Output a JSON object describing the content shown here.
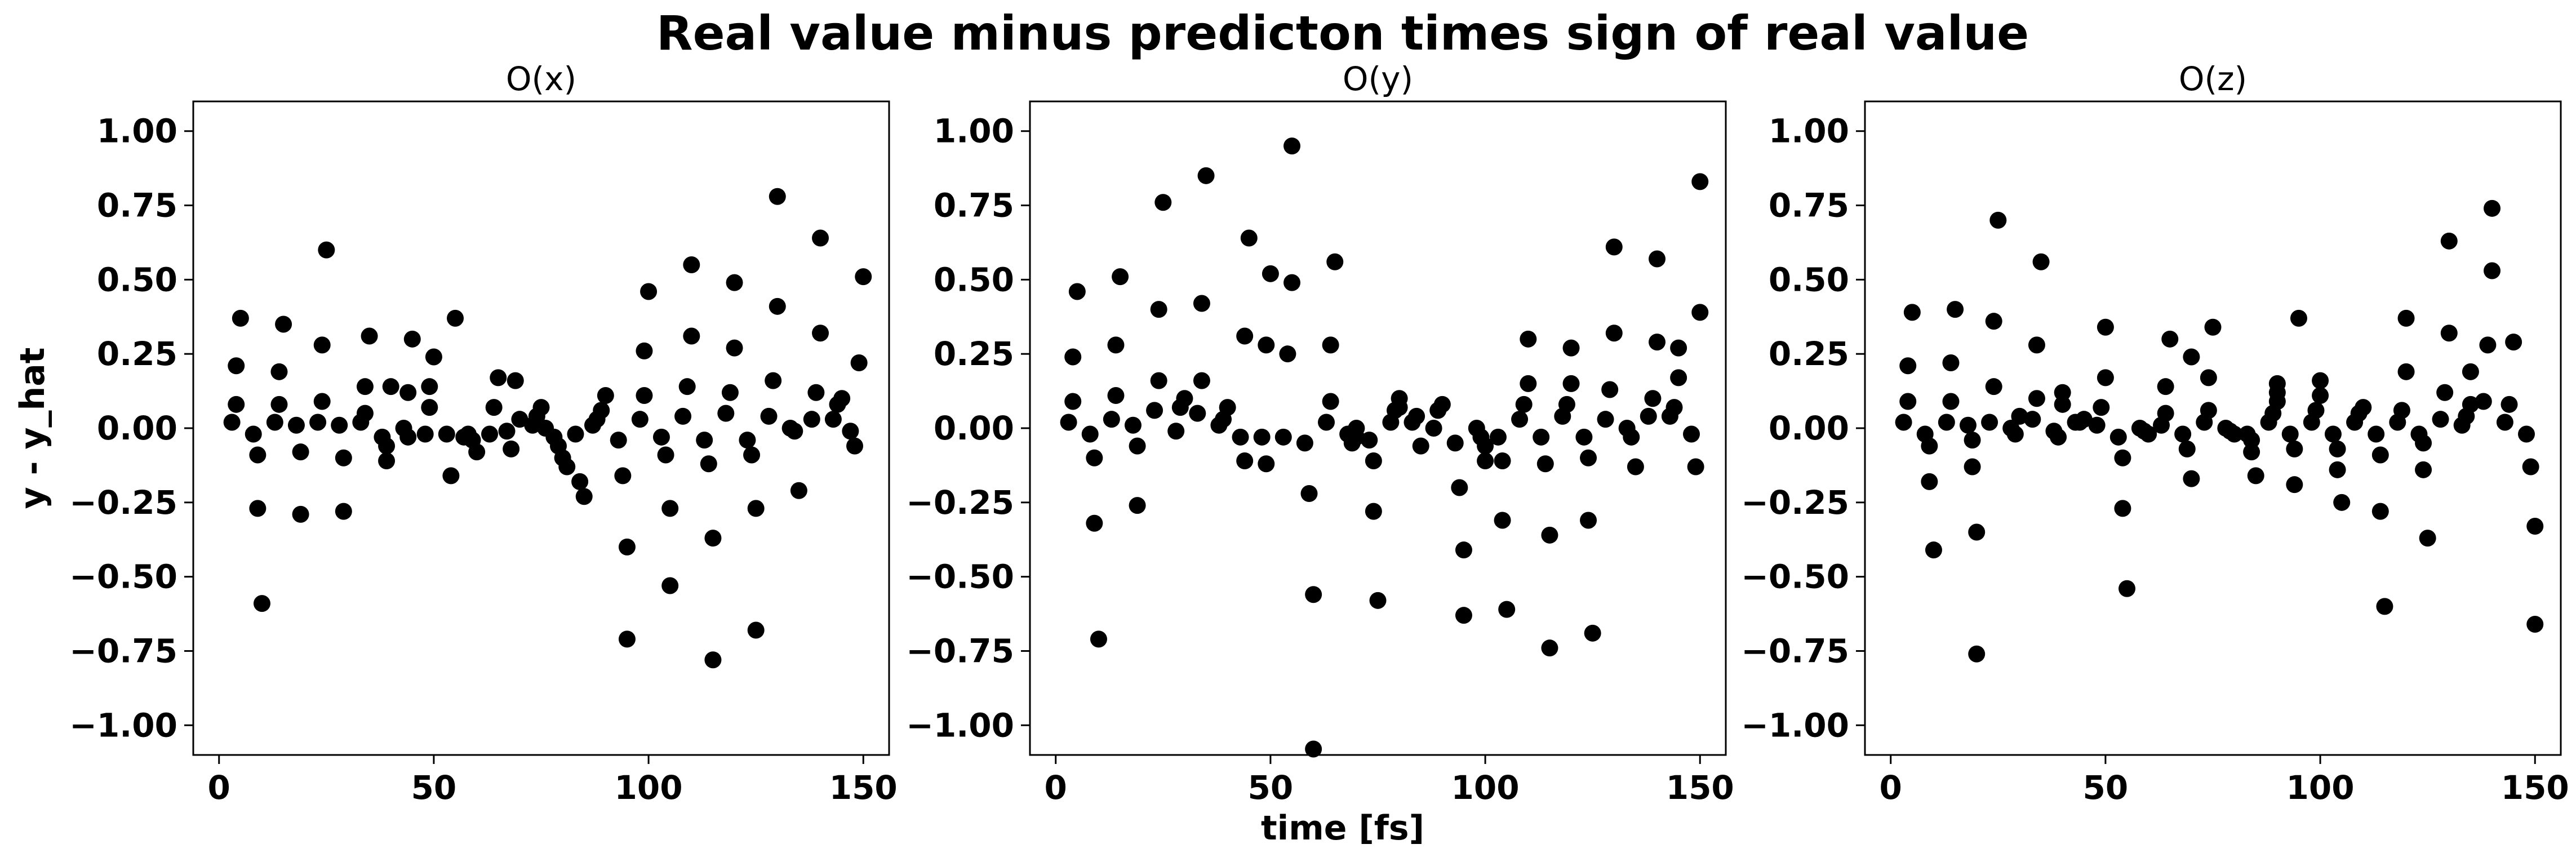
{
  "figure": {
    "title": "Real value minus predicton times sign of real value",
    "xlabel": "time [fs]",
    "ylabel": "y - y_hat"
  },
  "chart_data": [
    {
      "type": "scatter",
      "title": "O(x)",
      "xlim": [
        -6,
        156
      ],
      "ylim": [
        -1.1,
        1.1
      ],
      "xticks": [
        0,
        50,
        100,
        150
      ],
      "xtick_labels": [
        "0",
        "50",
        "100",
        "150"
      ],
      "yticks": [
        1.0,
        0.75,
        0.5,
        0.25,
        0.0,
        -0.25,
        -0.5,
        -0.75,
        -1.0
      ],
      "ytick_labels": [
        "1.00",
        "0.75",
        "0.50",
        "0.25",
        "0.00",
        "−0.25",
        "−0.50",
        "−0.75",
        "−1.00"
      ],
      "marker_color": "#000000",
      "grid": false,
      "points": [
        [
          3,
          0.02
        ],
        [
          4,
          0.08
        ],
        [
          4,
          0.21
        ],
        [
          5,
          0.37
        ],
        [
          8,
          -0.02
        ],
        [
          9,
          -0.09
        ],
        [
          9,
          -0.27
        ],
        [
          10,
          -0.59
        ],
        [
          13,
          0.02
        ],
        [
          14,
          0.08
        ],
        [
          14,
          0.19
        ],
        [
          15,
          0.35
        ],
        [
          18,
          0.01
        ],
        [
          19,
          -0.08
        ],
        [
          19,
          -0.29
        ],
        [
          23,
          0.02
        ],
        [
          24,
          0.09
        ],
        [
          24,
          0.28
        ],
        [
          25,
          0.6
        ],
        [
          28,
          0.01
        ],
        [
          29,
          -0.1
        ],
        [
          29,
          -0.28
        ],
        [
          33,
          0.02
        ],
        [
          34,
          0.05
        ],
        [
          34,
          0.14
        ],
        [
          35,
          0.31
        ],
        [
          38,
          -0.03
        ],
        [
          39,
          -0.06
        ],
        [
          39,
          -0.11
        ],
        [
          40,
          0.14
        ],
        [
          43,
          0.0
        ],
        [
          44,
          -0.03
        ],
        [
          44,
          0.12
        ],
        [
          45,
          0.3
        ],
        [
          48,
          -0.02
        ],
        [
          49,
          0.14
        ],
        [
          49,
          0.07
        ],
        [
          50,
          0.24
        ],
        [
          53,
          -0.02
        ],
        [
          54,
          -0.16
        ],
        [
          55,
          0.37
        ],
        [
          57,
          -0.03
        ],
        [
          58,
          -0.02
        ],
        [
          59,
          -0.04
        ],
        [
          60,
          -0.08
        ],
        [
          63,
          -0.02
        ],
        [
          64,
          0.07
        ],
        [
          65,
          0.17
        ],
        [
          67,
          -0.01
        ],
        [
          68,
          -0.07
        ],
        [
          69,
          0.16
        ],
        [
          70,
          0.03
        ],
        [
          73,
          0.01
        ],
        [
          74,
          0.04
        ],
        [
          75,
          0.07
        ],
        [
          76,
          0.0
        ],
        [
          78,
          -0.03
        ],
        [
          79,
          -0.06
        ],
        [
          80,
          -0.1
        ],
        [
          81,
          -0.13
        ],
        [
          83,
          -0.02
        ],
        [
          84,
          -0.18
        ],
        [
          85,
          -0.23
        ],
        [
          87,
          0.01
        ],
        [
          88,
          0.03
        ],
        [
          89,
          0.06
        ],
        [
          90,
          0.11
        ],
        [
          93,
          -0.04
        ],
        [
          94,
          -0.16
        ],
        [
          95,
          -0.4
        ],
        [
          95,
          -0.71
        ],
        [
          98,
          0.03
        ],
        [
          99,
          0.11
        ],
        [
          99,
          0.26
        ],
        [
          100,
          0.46
        ],
        [
          103,
          -0.03
        ],
        [
          104,
          -0.09
        ],
        [
          105,
          -0.27
        ],
        [
          105,
          -0.53
        ],
        [
          108,
          0.04
        ],
        [
          109,
          0.14
        ],
        [
          110,
          0.31
        ],
        [
          110,
          0.55
        ],
        [
          113,
          -0.04
        ],
        [
          114,
          -0.12
        ],
        [
          115,
          -0.37
        ],
        [
          115,
          -0.78
        ],
        [
          118,
          0.05
        ],
        [
          119,
          0.12
        ],
        [
          120,
          0.27
        ],
        [
          120,
          0.49
        ],
        [
          123,
          -0.04
        ],
        [
          124,
          -0.09
        ],
        [
          125,
          -0.27
        ],
        [
          125,
          -0.68
        ],
        [
          128,
          0.04
        ],
        [
          129,
          0.16
        ],
        [
          130,
          0.41
        ],
        [
          130,
          0.78
        ],
        [
          133,
          0.0
        ],
        [
          134,
          -0.01
        ],
        [
          135,
          -0.21
        ],
        [
          138,
          0.03
        ],
        [
          139,
          0.12
        ],
        [
          140,
          0.32
        ],
        [
          140,
          0.64
        ],
        [
          143,
          0.03
        ],
        [
          144,
          0.08
        ],
        [
          145,
          0.1
        ],
        [
          147,
          -0.01
        ],
        [
          148,
          -0.06
        ],
        [
          149,
          0.22
        ],
        [
          150,
          0.51
        ]
      ]
    },
    {
      "type": "scatter",
      "title": "O(y)",
      "xlim": [
        -6,
        156
      ],
      "ylim": [
        -1.1,
        1.1
      ],
      "xticks": [
        0,
        50,
        100,
        150
      ],
      "xtick_labels": [
        "0",
        "50",
        "100",
        "150"
      ],
      "yticks": [
        1.0,
        0.75,
        0.5,
        0.25,
        0.0,
        -0.25,
        -0.5,
        -0.75,
        -1.0
      ],
      "ytick_labels": [
        "1.00",
        "0.75",
        "0.50",
        "0.25",
        "0.00",
        "−0.25",
        "−0.50",
        "−0.75",
        "−1.00"
      ],
      "marker_color": "#000000",
      "grid": false,
      "points": [
        [
          3,
          0.02
        ],
        [
          4,
          0.09
        ],
        [
          4,
          0.24
        ],
        [
          5,
          0.46
        ],
        [
          8,
          -0.02
        ],
        [
          9,
          -0.1
        ],
        [
          9,
          -0.32
        ],
        [
          10,
          -0.71
        ],
        [
          13,
          0.03
        ],
        [
          14,
          0.11
        ],
        [
          14,
          0.28
        ],
        [
          15,
          0.51
        ],
        [
          18,
          0.01
        ],
        [
          19,
          -0.06
        ],
        [
          19,
          -0.26
        ],
        [
          23,
          0.06
        ],
        [
          24,
          0.16
        ],
        [
          24,
          0.4
        ],
        [
          25,
          0.76
        ],
        [
          28,
          -0.01
        ],
        [
          29,
          0.07
        ],
        [
          30,
          0.1
        ],
        [
          33,
          0.05
        ],
        [
          34,
          0.16
        ],
        [
          34,
          0.42
        ],
        [
          35,
          0.85
        ],
        [
          38,
          0.01
        ],
        [
          39,
          0.03
        ],
        [
          40,
          0.07
        ],
        [
          43,
          -0.03
        ],
        [
          44,
          -0.11
        ],
        [
          44,
          0.31
        ],
        [
          45,
          0.64
        ],
        [
          48,
          -0.03
        ],
        [
          49,
          -0.12
        ],
        [
          49,
          0.28
        ],
        [
          50,
          0.52
        ],
        [
          53,
          -0.03
        ],
        [
          54,
          0.25
        ],
        [
          55,
          0.49
        ],
        [
          55,
          0.95
        ],
        [
          58,
          -0.05
        ],
        [
          59,
          -0.22
        ],
        [
          60,
          -0.56
        ],
        [
          60,
          -1.08
        ],
        [
          63,
          0.02
        ],
        [
          64,
          0.09
        ],
        [
          64,
          0.28
        ],
        [
          65,
          0.56
        ],
        [
          68,
          -0.02
        ],
        [
          69,
          -0.05
        ],
        [
          70,
          -0.03
        ],
        [
          70,
          0.0
        ],
        [
          73,
          -0.04
        ],
        [
          74,
          -0.11
        ],
        [
          74,
          -0.28
        ],
        [
          75,
          -0.58
        ],
        [
          78,
          0.02
        ],
        [
          79,
          0.06
        ],
        [
          80,
          0.07
        ],
        [
          80,
          0.1
        ],
        [
          83,
          0.02
        ],
        [
          84,
          0.04
        ],
        [
          85,
          -0.06
        ],
        [
          88,
          0.0
        ],
        [
          89,
          0.06
        ],
        [
          90,
          0.08
        ],
        [
          93,
          -0.05
        ],
        [
          94,
          -0.2
        ],
        [
          95,
          -0.41
        ],
        [
          95,
          -0.63
        ],
        [
          98,
          0.0
        ],
        [
          99,
          -0.03
        ],
        [
          100,
          -0.06
        ],
        [
          100,
          -0.11
        ],
        [
          103,
          -0.03
        ],
        [
          104,
          -0.11
        ],
        [
          104,
          -0.31
        ],
        [
          105,
          -0.61
        ],
        [
          108,
          0.03
        ],
        [
          109,
          0.08
        ],
        [
          110,
          0.15
        ],
        [
          110,
          0.3
        ],
        [
          113,
          -0.03
        ],
        [
          114,
          -0.12
        ],
        [
          115,
          -0.36
        ],
        [
          115,
          -0.74
        ],
        [
          118,
          0.04
        ],
        [
          119,
          0.08
        ],
        [
          120,
          0.15
        ],
        [
          120,
          0.27
        ],
        [
          123,
          -0.03
        ],
        [
          124,
          -0.1
        ],
        [
          124,
          -0.31
        ],
        [
          125,
          -0.69
        ],
        [
          128,
          0.03
        ],
        [
          129,
          0.13
        ],
        [
          130,
          0.32
        ],
        [
          130,
          0.61
        ],
        [
          133,
          0.0
        ],
        [
          134,
          -0.03
        ],
        [
          135,
          -0.13
        ],
        [
          138,
          0.04
        ],
        [
          139,
          0.1
        ],
        [
          140,
          0.29
        ],
        [
          140,
          0.57
        ],
        [
          143,
          0.04
        ],
        [
          144,
          0.07
        ],
        [
          145,
          0.17
        ],
        [
          145,
          0.27
        ],
        [
          148,
          -0.02
        ],
        [
          149,
          -0.13
        ],
        [
          150,
          0.39
        ],
        [
          150,
          0.83
        ]
      ]
    },
    {
      "type": "scatter",
      "title": "O(z)",
      "xlim": [
        -6,
        156
      ],
      "ylim": [
        -1.1,
        1.1
      ],
      "xticks": [
        0,
        50,
        100,
        150
      ],
      "xtick_labels": [
        "0",
        "50",
        "100",
        "150"
      ],
      "yticks": [
        1.0,
        0.75,
        0.5,
        0.25,
        0.0,
        -0.25,
        -0.5,
        -0.75,
        -1.0
      ],
      "ytick_labels": [
        "1.00",
        "0.75",
        "0.50",
        "0.25",
        "0.00",
        "−0.25",
        "−0.50",
        "−0.75",
        "−1.00"
      ],
      "marker_color": "#000000",
      "grid": false,
      "points": [
        [
          3,
          0.02
        ],
        [
          4,
          0.09
        ],
        [
          4,
          0.21
        ],
        [
          5,
          0.39
        ],
        [
          8,
          -0.02
        ],
        [
          9,
          -0.06
        ],
        [
          9,
          -0.18
        ],
        [
          10,
          -0.41
        ],
        [
          13,
          0.02
        ],
        [
          14,
          0.09
        ],
        [
          14,
          0.22
        ],
        [
          15,
          0.4
        ],
        [
          18,
          0.01
        ],
        [
          19,
          -0.04
        ],
        [
          19,
          -0.13
        ],
        [
          20,
          -0.35
        ],
        [
          20,
          -0.76
        ],
        [
          23,
          0.02
        ],
        [
          24,
          0.14
        ],
        [
          24,
          0.36
        ],
        [
          25,
          0.7
        ],
        [
          28,
          0.0
        ],
        [
          29,
          -0.02
        ],
        [
          30,
          0.04
        ],
        [
          33,
          0.03
        ],
        [
          34,
          0.1
        ],
        [
          34,
          0.28
        ],
        [
          35,
          0.56
        ],
        [
          38,
          -0.01
        ],
        [
          39,
          -0.03
        ],
        [
          40,
          0.08
        ],
        [
          40,
          0.12
        ],
        [
          43,
          0.02
        ],
        [
          44,
          0.02
        ],
        [
          45,
          0.03
        ],
        [
          48,
          0.01
        ],
        [
          49,
          0.07
        ],
        [
          50,
          0.17
        ],
        [
          50,
          0.34
        ],
        [
          53,
          -0.03
        ],
        [
          54,
          -0.1
        ],
        [
          54,
          -0.27
        ],
        [
          55,
          -0.54
        ],
        [
          58,
          0.0
        ],
        [
          59,
          -0.01
        ],
        [
          60,
          -0.02
        ],
        [
          63,
          0.01
        ],
        [
          64,
          0.05
        ],
        [
          64,
          0.14
        ],
        [
          65,
          0.3
        ],
        [
          68,
          -0.02
        ],
        [
          69,
          -0.07
        ],
        [
          70,
          -0.17
        ],
        [
          70,
          0.24
        ],
        [
          73,
          0.02
        ],
        [
          74,
          0.06
        ],
        [
          74,
          0.17
        ],
        [
          75,
          0.34
        ],
        [
          78,
          0.0
        ],
        [
          79,
          -0.01
        ],
        [
          80,
          -0.02
        ],
        [
          83,
          -0.02
        ],
        [
          84,
          -0.04
        ],
        [
          84,
          -0.08
        ],
        [
          85,
          -0.16
        ],
        [
          88,
          0.02
        ],
        [
          89,
          0.05
        ],
        [
          90,
          0.09
        ],
        [
          90,
          0.12
        ],
        [
          90,
          0.15
        ],
        [
          93,
          -0.02
        ],
        [
          94,
          -0.07
        ],
        [
          94,
          -0.19
        ],
        [
          95,
          0.37
        ],
        [
          98,
          0.02
        ],
        [
          99,
          0.06
        ],
        [
          100,
          0.11
        ],
        [
          100,
          0.16
        ],
        [
          103,
          -0.02
        ],
        [
          104,
          -0.07
        ],
        [
          104,
          -0.14
        ],
        [
          105,
          -0.25
        ],
        [
          108,
          0.02
        ],
        [
          109,
          0.05
        ],
        [
          110,
          0.07
        ],
        [
          113,
          -0.02
        ],
        [
          114,
          -0.09
        ],
        [
          114,
          -0.28
        ],
        [
          115,
          -0.6
        ],
        [
          118,
          0.02
        ],
        [
          119,
          0.06
        ],
        [
          120,
          0.19
        ],
        [
          120,
          0.37
        ],
        [
          123,
          -0.02
        ],
        [
          124,
          -0.05
        ],
        [
          124,
          -0.14
        ],
        [
          125,
          -0.37
        ],
        [
          128,
          0.03
        ],
        [
          129,
          0.12
        ],
        [
          130,
          0.32
        ],
        [
          130,
          0.63
        ],
        [
          133,
          0.01
        ],
        [
          134,
          0.04
        ],
        [
          135,
          0.08
        ],
        [
          135,
          0.19
        ],
        [
          138,
          0.09
        ],
        [
          139,
          0.28
        ],
        [
          140,
          0.53
        ],
        [
          140,
          0.74
        ],
        [
          143,
          0.02
        ],
        [
          144,
          0.08
        ],
        [
          145,
          0.29
        ],
        [
          148,
          -0.02
        ],
        [
          149,
          -0.13
        ],
        [
          150,
          -0.33
        ],
        [
          150,
          -0.66
        ]
      ]
    }
  ]
}
